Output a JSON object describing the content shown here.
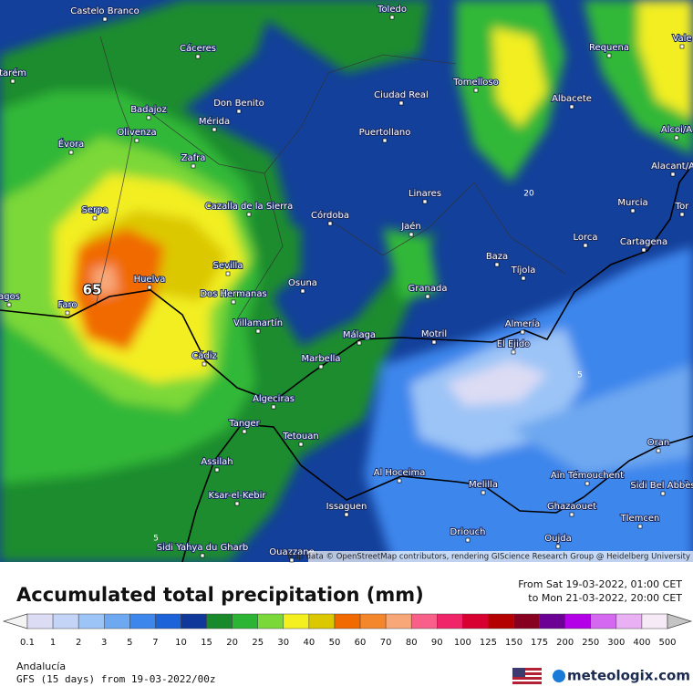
{
  "map": {
    "cities": [
      "Castelo Branco",
      "Toledo",
      "Cáceres",
      "Requena",
      "Vale",
      "tarém",
      "Tomelloso",
      "Ciudad Real",
      "Don Benito",
      "Albacete",
      "Badajoz",
      "Mérida",
      "Olivenza",
      "Puertollano",
      "Évora",
      "Alcoi/A",
      "Zafra",
      "Alacant/A",
      "Cazalla de la Sierra",
      "Linares",
      "Murcia",
      "Serpa",
      "Córdoba",
      "Jaén",
      "Lorca",
      "Cartagena",
      "Baza",
      "Tíjola",
      "Sevilla",
      "Huelva",
      "Osuna",
      "Granada",
      "Dos Hermanas",
      "Faro",
      "agos",
      "Villamartín",
      "Almería",
      "Málaga",
      "Motril",
      "El Ejido",
      "Cádiz",
      "Marbella",
      "Algeciras",
      "Tanger",
      "Tetouan",
      "Oran",
      "Assilah",
      "Al Hoceima",
      "Aïn Témouchent",
      "Melilla",
      "Sidi Bel Abbès",
      "Ksar-el-Kebir",
      "Issaguen",
      "Ghazaouet",
      "Tlemcen",
      "Driouch",
      "Oujda",
      "Sidi Yahya du Gharb",
      "Ouazzane",
      "Tor"
    ],
    "contour_labels": [
      "65",
      "20",
      "5",
      "5"
    ],
    "attribution": "Map data © OpenStreetMap contributors, rendering GIScience Research Group @ Heidelberg University"
  },
  "footer": {
    "title": "Accumulated total precipitation (mm)",
    "period_from": "From Sat 19-03-2022, 01:00 CET",
    "period_to": "to Mon 21-03-2022, 20:00 CET",
    "region": "Andalucía",
    "model": "GFS (15 days) from  19-03-2022/00z",
    "brand": "meteologix.com"
  },
  "legend": {
    "levels": [
      {
        "label": "0.1",
        "color": "#dcdcf4"
      },
      {
        "label": "1",
        "color": "#c4d4f6"
      },
      {
        "label": "2",
        "color": "#9cc4f6"
      },
      {
        "label": "3",
        "color": "#6ea8f0"
      },
      {
        "label": "5",
        "color": "#3c86ec"
      },
      {
        "label": "7",
        "color": "#1c62d8"
      },
      {
        "label": "10",
        "color": "#10389a"
      },
      {
        "label": "15",
        "color": "#188a2c"
      },
      {
        "label": "20",
        "color": "#2cb434"
      },
      {
        "label": "25",
        "color": "#7ad838"
      },
      {
        "label": "30",
        "color": "#f4f020"
      },
      {
        "label": "40",
        "color": "#dcc800"
      },
      {
        "label": "50",
        "color": "#f06a00"
      },
      {
        "label": "60",
        "color": "#f4862c"
      },
      {
        "label": "70",
        "color": "#f8a878"
      },
      {
        "label": "80",
        "color": "#f8608a"
      },
      {
        "label": "90",
        "color": "#f02468"
      },
      {
        "label": "100",
        "color": "#d80030"
      },
      {
        "label": "125",
        "color": "#b40000"
      },
      {
        "label": "150",
        "color": "#880020"
      },
      {
        "label": "175",
        "color": "#6c0094"
      },
      {
        "label": "200",
        "color": "#b400e8"
      },
      {
        "label": "250",
        "color": "#d468f0"
      },
      {
        "label": "300",
        "color": "#eab0f4"
      },
      {
        "label": "400",
        "color": "#f6eaf6"
      },
      {
        "label": "500",
        "color": "#c4c4c4"
      }
    ]
  }
}
